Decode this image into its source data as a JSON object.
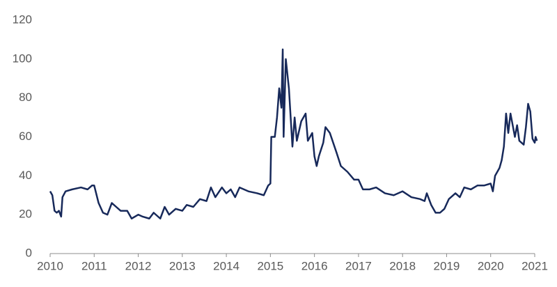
{
  "chart_data": {
    "type": "line",
    "x": [
      2010.0,
      2010.05,
      2010.1,
      2010.15,
      2010.2,
      2010.25,
      2010.28,
      2010.35,
      2010.5,
      2010.7,
      2010.85,
      2010.95,
      2011.0,
      2011.1,
      2011.2,
      2011.3,
      2011.4,
      2011.5,
      2011.6,
      2011.75,
      2011.85,
      2012.0,
      2012.1,
      2012.25,
      2012.35,
      2012.5,
      2012.6,
      2012.7,
      2012.85,
      2013.0,
      2013.1,
      2013.25,
      2013.4,
      2013.55,
      2013.65,
      2013.75,
      2013.9,
      2014.0,
      2014.1,
      2014.2,
      2014.3,
      2014.5,
      2014.7,
      2014.85,
      2014.95,
      2015.0,
      2015.02,
      2015.1,
      2015.15,
      2015.2,
      2015.25,
      2015.28,
      2015.3,
      2015.35,
      2015.42,
      2015.5,
      2015.55,
      2015.6,
      2015.7,
      2015.8,
      2015.85,
      2015.95,
      2016.0,
      2016.05,
      2016.1,
      2016.2,
      2016.25,
      2016.35,
      2016.5,
      2016.6,
      2016.75,
      2016.9,
      2017.0,
      2017.1,
      2017.25,
      2017.4,
      2017.6,
      2017.8,
      2018.0,
      2018.2,
      2018.4,
      2018.5,
      2018.55,
      2018.65,
      2018.75,
      2018.85,
      2018.95,
      2019.05,
      2019.2,
      2019.3,
      2019.4,
      2019.55,
      2019.7,
      2019.85,
      2020.0,
      2020.05,
      2020.1,
      2020.2,
      2020.25,
      2020.3,
      2020.35,
      2020.4,
      2020.45,
      2020.55,
      2020.6,
      2020.65,
      2020.75,
      2020.8,
      2020.85,
      2020.9,
      2020.95,
      2021.0,
      2021.02,
      2021.05
    ],
    "series": [
      {
        "color": "#17295a",
        "values": [
          32,
          30,
          22,
          21,
          22,
          19,
          29,
          32,
          33,
          34,
          33,
          35,
          35,
          26,
          21,
          20,
          26,
          24,
          22,
          22,
          18,
          20,
          19,
          18,
          21,
          18,
          24,
          20,
          23,
          22,
          25,
          24,
          28,
          27,
          34,
          29,
          34,
          31,
          33,
          29,
          34,
          32,
          31,
          30,
          35,
          36,
          60,
          60,
          70,
          85,
          75,
          105,
          60,
          100,
          85,
          55,
          70,
          58,
          68,
          72,
          58,
          62,
          50,
          45,
          50,
          57,
          65,
          62,
          52,
          45,
          42,
          38,
          38,
          33,
          33,
          34,
          31,
          30,
          32,
          29,
          28,
          27,
          31,
          25,
          21,
          21,
          23,
          28,
          31,
          29,
          34,
          33,
          35,
          35,
          36,
          32,
          40,
          44,
          48,
          55,
          72,
          62,
          72,
          60,
          66,
          58,
          56,
          65,
          77,
          73,
          59,
          57,
          60,
          58
        ]
      }
    ],
    "xlim": [
      2010,
      2021
    ],
    "xticks": [
      2010,
      2011,
      2012,
      2013,
      2014,
      2015,
      2016,
      2017,
      2018,
      2019,
      2020,
      2021
    ],
    "ylim": [
      0,
      120
    ],
    "yticks": [
      0,
      20,
      40,
      60,
      80,
      100,
      120
    ],
    "grid": false
  }
}
